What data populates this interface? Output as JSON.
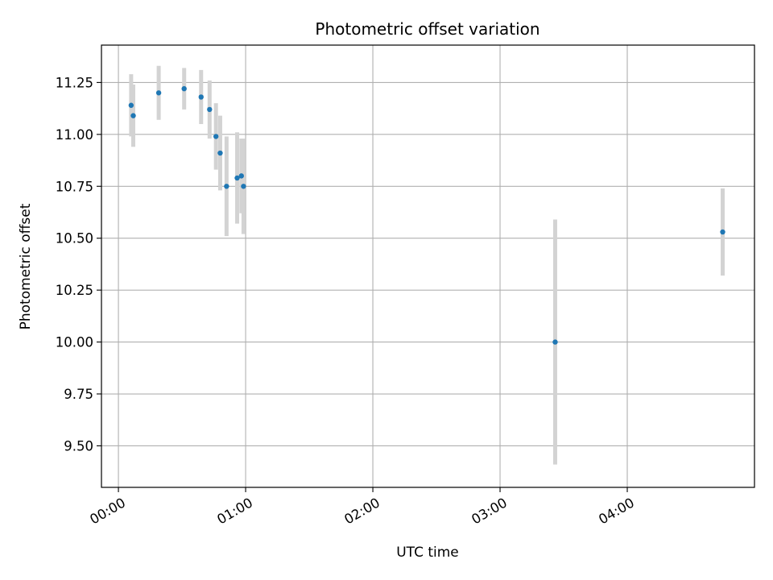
{
  "chart_data": {
    "type": "scatter",
    "title": "Photometric offset variation",
    "xlabel": "UTC time",
    "ylabel": "Photometric offset",
    "x_unit": "UTC hh:mm",
    "xlim": [
      "-00:08",
      "05:00"
    ],
    "ylim": [
      9.3,
      11.43
    ],
    "x_ticks": [
      "00:00",
      "01:00",
      "02:00",
      "03:00",
      "04:00"
    ],
    "y_ticks": [
      9.5,
      9.75,
      10.0,
      10.25,
      10.5,
      10.75,
      11.0,
      11.25
    ],
    "y_tick_labels": [
      "9.50",
      "9.75",
      "10.00",
      "10.25",
      "10.50",
      "10.75",
      "11.00",
      "11.25"
    ],
    "grid": true,
    "point_color": "#1f77b4",
    "errorbar_color": "#d3d3d3",
    "points": [
      {
        "x": "00:06",
        "y": 11.14,
        "yerr": 0.15
      },
      {
        "x": "00:07",
        "y": 11.09,
        "yerr": 0.15
      },
      {
        "x": "00:19",
        "y": 11.2,
        "yerr": 0.13
      },
      {
        "x": "00:31",
        "y": 11.22,
        "yerr": 0.1
      },
      {
        "x": "00:39",
        "y": 11.18,
        "yerr": 0.13
      },
      {
        "x": "00:43",
        "y": 11.12,
        "yerr": 0.14
      },
      {
        "x": "00:46",
        "y": 10.99,
        "yerr": 0.16
      },
      {
        "x": "00:48",
        "y": 10.91,
        "yerr": 0.18
      },
      {
        "x": "00:51",
        "y": 10.75,
        "yerr": 0.24
      },
      {
        "x": "00:56",
        "y": 10.79,
        "yerr": 0.22
      },
      {
        "x": "00:58",
        "y": 10.8,
        "yerr": 0.18
      },
      {
        "x": "00:59",
        "y": 10.75,
        "yerr": 0.23
      },
      {
        "x": "03:26",
        "y": 10.0,
        "yerr": 0.59
      },
      {
        "x": "04:45",
        "y": 10.53,
        "yerr": 0.21
      }
    ]
  }
}
